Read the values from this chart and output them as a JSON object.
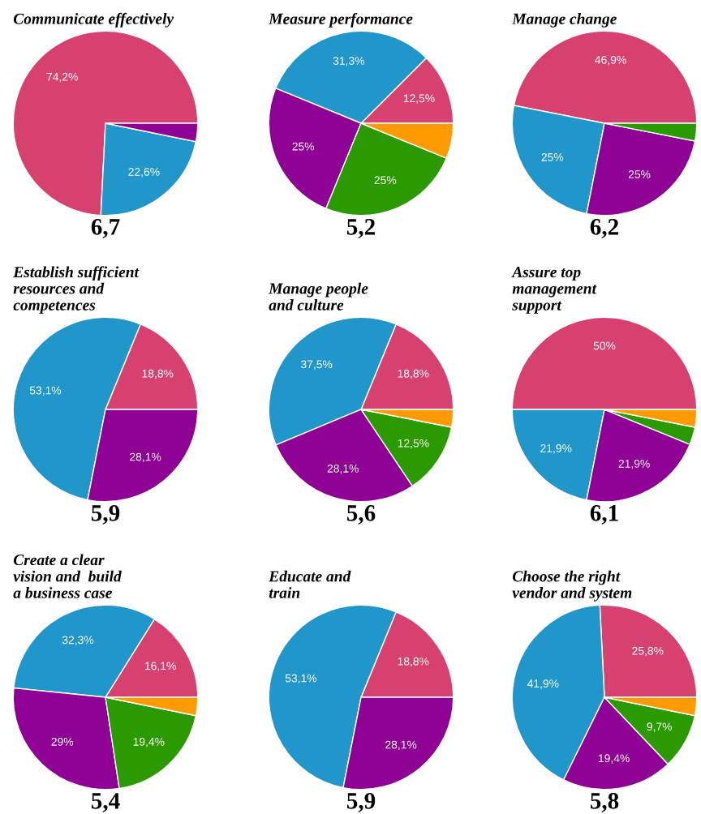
{
  "chart_data": [
    {
      "type": "pie",
      "title": "Communicate effectively",
      "categories": [
        null,
        null,
        null
      ],
      "values": [
        74.2,
        22.6,
        3.2
      ],
      "colors": [
        "#d6416f",
        "#2196ca",
        "#8f0094"
      ],
      "value_labels": [
        "74,2%",
        "22,6%",
        null
      ],
      "annotations": [
        "6,7"
      ]
    },
    {
      "type": "pie",
      "title": "Measure performance",
      "categories": [
        null,
        null,
        null,
        null,
        null
      ],
      "values": [
        12.5,
        31.3,
        25,
        25,
        6.2
      ],
      "colors": [
        "#d6416f",
        "#2196ca",
        "#8f0094",
        "#2b9a00",
        "#ff9a00"
      ],
      "value_labels": [
        "12,5%",
        "31,3%",
        "25%",
        "25%",
        null
      ],
      "annotations": [
        "5,2"
      ]
    },
    {
      "type": "pie",
      "title": "Manage change",
      "categories": [
        null,
        null,
        null,
        null
      ],
      "values": [
        46.9,
        25,
        25,
        3.1
      ],
      "colors": [
        "#d6416f",
        "#2196ca",
        "#8f0094",
        "#2b9a00"
      ],
      "value_labels": [
        "46,9%",
        "25%",
        "25%",
        null
      ],
      "annotations": [
        "6,2"
      ]
    },
    {
      "type": "pie",
      "title": "Establish sufficient\nresources and\ncompetences",
      "categories": [
        null,
        null,
        null
      ],
      "values": [
        18.8,
        53.1,
        28.1
      ],
      "colors": [
        "#d6416f",
        "#2196ca",
        "#8f0094"
      ],
      "value_labels": [
        "18,8%",
        "53,1%",
        "28,1%"
      ],
      "annotations": [
        "5,9"
      ]
    },
    {
      "type": "pie",
      "title": "Manage people\nand culture",
      "categories": [
        null,
        null,
        null,
        null,
        null
      ],
      "values": [
        18.8,
        37.5,
        28.1,
        12.5,
        3.1
      ],
      "colors": [
        "#d6416f",
        "#2196ca",
        "#8f0094",
        "#2b9a00",
        "#ff9a00"
      ],
      "value_labels": [
        "18,8%",
        "37,5%",
        "28,1%",
        "12,5%",
        null
      ],
      "annotations": [
        "5,6"
      ]
    },
    {
      "type": "pie",
      "title": "Assure top\nmanagement\nsupport",
      "categories": [
        null,
        null,
        null,
        null,
        null
      ],
      "values": [
        50,
        21.9,
        21.9,
        3.1,
        3.1
      ],
      "colors": [
        "#d6416f",
        "#2196ca",
        "#8f0094",
        "#2b9a00",
        "#ff9a00"
      ],
      "value_labels": [
        "50%",
        "21,9%",
        "21,9%",
        null,
        null
      ],
      "annotations": [
        "6,1"
      ]
    },
    {
      "type": "pie",
      "title": "Create a clear\nvision and  build\na business case",
      "categories": [
        null,
        null,
        null,
        null,
        null
      ],
      "values": [
        16.1,
        32.3,
        29,
        19.4,
        3.2
      ],
      "colors": [
        "#d6416f",
        "#2196ca",
        "#8f0094",
        "#2b9a00",
        "#ff9a00"
      ],
      "value_labels": [
        "16,1%",
        "32,3%",
        "29%",
        "19,4%",
        null
      ],
      "annotations": [
        "5,4"
      ]
    },
    {
      "type": "pie",
      "title": "Educate and\ntrain",
      "categories": [
        null,
        null,
        null
      ],
      "values": [
        18.8,
        53.1,
        28.1
      ],
      "colors": [
        "#d6416f",
        "#2196ca",
        "#8f0094"
      ],
      "value_labels": [
        "18,8%",
        "53,1%",
        "28,1%"
      ],
      "annotations": [
        "5,9"
      ]
    },
    {
      "type": "pie",
      "title": "Choose the right\nvendor and system",
      "categories": [
        null,
        null,
        null,
        null,
        null
      ],
      "values": [
        25.8,
        41.9,
        19.4,
        9.7,
        3.2
      ],
      "colors": [
        "#d6416f",
        "#2196ca",
        "#8f0094",
        "#2b9a00",
        "#ff9a00"
      ],
      "value_labels": [
        "25,8%",
        "41,9%",
        "19,4%",
        "9,7%",
        null
      ],
      "annotations": [
        "5,8"
      ]
    }
  ]
}
